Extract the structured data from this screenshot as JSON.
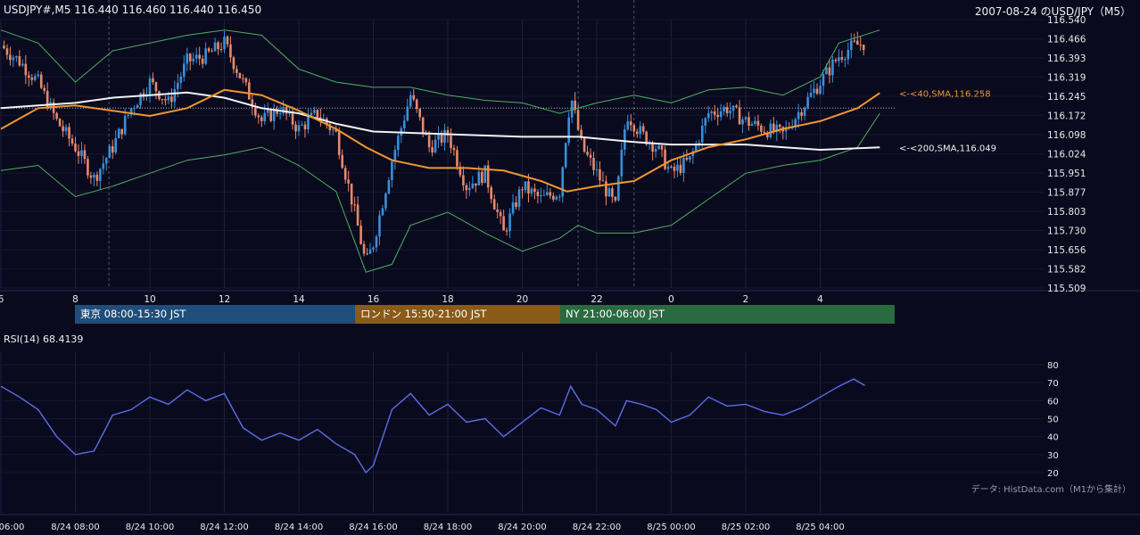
{
  "header": {
    "ohlc_label": "USDJPY#,M5 116.440 116.460 116.440 116.450",
    "title": "2007-08-24 のUSD/JPY（M5）"
  },
  "sessions": [
    {
      "label": "東京 08:00-15:30 JST",
      "color": "#1f4e7a"
    },
    {
      "label": "ロンドン 15:30-21:00 JST",
      "color": "#8a5a18"
    },
    {
      "label": "NY 21:00-06:00 JST",
      "color": "#2a6a40"
    }
  ],
  "rsi_label": "RSI(14) 68.4139",
  "credit": "データ: HistData.com（M1から集計）",
  "colors": {
    "up": "#3a8fd8",
    "down": "#e8896a",
    "sma40": "#f0962e",
    "sma200": "#f2f2f2",
    "band": "#4fae5e",
    "rsi": "#5a6ee8"
  },
  "chart_data": [
    {
      "type": "candlestick",
      "title": "USDJPY#,M5",
      "y_ticks": [
        "116.540",
        "116.466",
        "116.393",
        "116.319",
        "116.245",
        "116.172",
        "116.098",
        "116.024",
        "115.951",
        "115.877",
        "115.803",
        "115.730",
        "115.656",
        "115.582",
        "115.509"
      ],
      "ylim": [
        115.509,
        116.54
      ],
      "x_ticks": [
        "6",
        "8",
        "10",
        "12",
        "14",
        "16",
        "18",
        "20",
        "22",
        "0",
        "2",
        "4"
      ],
      "close_path": [
        [
          6.0,
          116.44
        ],
        [
          6.5,
          116.38
        ],
        [
          7.0,
          116.3
        ],
        [
          7.5,
          116.15
        ],
        [
          8.0,
          116.05
        ],
        [
          8.5,
          115.93
        ],
        [
          9.0,
          116.05
        ],
        [
          9.5,
          116.2
        ],
        [
          10.0,
          116.3
        ],
        [
          10.5,
          116.22
        ],
        [
          11.0,
          116.38
        ],
        [
          11.5,
          116.4
        ],
        [
          12.0,
          116.45
        ],
        [
          12.5,
          116.3
        ],
        [
          13.0,
          116.15
        ],
        [
          13.5,
          116.2
        ],
        [
          14.0,
          116.12
        ],
        [
          14.5,
          116.18
        ],
        [
          15.0,
          116.1
        ],
        [
          15.5,
          115.8
        ],
        [
          15.8,
          115.6
        ],
        [
          16.0,
          115.68
        ],
        [
          16.5,
          116.0
        ],
        [
          17.0,
          116.25
        ],
        [
          17.5,
          116.05
        ],
        [
          18.0,
          116.1
        ],
        [
          18.5,
          115.9
        ],
        [
          19.0,
          115.95
        ],
        [
          19.5,
          115.72
        ],
        [
          20.0,
          115.9
        ],
        [
          20.5,
          115.85
        ],
        [
          21.0,
          115.88
        ],
        [
          21.3,
          116.25
        ],
        [
          21.6,
          116.05
        ],
        [
          22.0,
          115.95
        ],
        [
          22.5,
          115.82
        ],
        [
          22.8,
          116.18
        ],
        [
          23.2,
          116.1
        ],
        [
          23.6,
          116.05
        ],
        [
          24.0,
          115.95
        ],
        [
          24.5,
          116.0
        ],
        [
          25.0,
          116.18
        ],
        [
          25.5,
          116.2
        ],
        [
          26.0,
          116.15
        ],
        [
          26.5,
          116.12
        ],
        [
          27.0,
          116.1
        ],
        [
          27.5,
          116.2
        ],
        [
          28.0,
          116.3
        ],
        [
          28.5,
          116.4
        ],
        [
          28.9,
          116.44
        ],
        [
          29.2,
          116.45
        ]
      ],
      "series": [
        {
          "name": "<-<40,SMA,116.258",
          "values": [
            [
              6.0,
              116.12
            ],
            [
              7.0,
              116.2
            ],
            [
              8.0,
              116.21
            ],
            [
              9.0,
              116.19
            ],
            [
              10.0,
              116.17
            ],
            [
              11.0,
              116.2
            ],
            [
              12.0,
              116.27
            ],
            [
              13.0,
              116.25
            ],
            [
              14.0,
              116.19
            ],
            [
              15.0,
              116.12
            ],
            [
              15.8,
              116.05
            ],
            [
              16.5,
              116.0
            ],
            [
              17.5,
              115.97
            ],
            [
              18.5,
              115.97
            ],
            [
              19.5,
              115.96
            ],
            [
              20.5,
              115.92
            ],
            [
              21.2,
              115.88
            ],
            [
              22.0,
              115.9
            ],
            [
              23.0,
              115.92
            ],
            [
              24.0,
              116.0
            ],
            [
              25.0,
              116.05
            ],
            [
              26.0,
              116.08
            ],
            [
              27.0,
              116.12
            ],
            [
              28.0,
              116.15
            ],
            [
              29.0,
              116.2
            ],
            [
              29.6,
              116.258
            ]
          ]
        },
        {
          "name": "<-<200,SMA,116.049",
          "values": [
            [
              6.0,
              116.2
            ],
            [
              7.0,
              116.21
            ],
            [
              8.0,
              116.22
            ],
            [
              9.0,
              116.24
            ],
            [
              10.0,
              116.25
            ],
            [
              11.0,
              116.26
            ],
            [
              12.0,
              116.24
            ],
            [
              13.0,
              116.2
            ],
            [
              14.0,
              116.18
            ],
            [
              15.0,
              116.14
            ],
            [
              16.0,
              116.11
            ],
            [
              18.0,
              116.1
            ],
            [
              20.0,
              116.09
            ],
            [
              21.5,
              116.09
            ],
            [
              23.0,
              116.07
            ],
            [
              24.0,
              116.06
            ],
            [
              25.0,
              116.06
            ],
            [
              26.0,
              116.06
            ],
            [
              27.0,
              116.05
            ],
            [
              28.0,
              116.04
            ],
            [
              29.6,
              116.049
            ]
          ]
        },
        {
          "name": "band_upper",
          "values": [
            [
              6.0,
              116.5
            ],
            [
              7.0,
              116.45
            ],
            [
              8.0,
              116.3
            ],
            [
              9.0,
              116.42
            ],
            [
              10.0,
              116.45
            ],
            [
              11.0,
              116.48
            ],
            [
              12.0,
              116.5
            ],
            [
              13.0,
              116.48
            ],
            [
              14.0,
              116.35
            ],
            [
              15.0,
              116.3
            ],
            [
              16.0,
              116.28
            ],
            [
              17.0,
              116.28
            ],
            [
              18.0,
              116.25
            ],
            [
              19.0,
              116.23
            ],
            [
              20.0,
              116.22
            ],
            [
              21.0,
              116.18
            ],
            [
              22.0,
              116.22
            ],
            [
              23.0,
              116.25
            ],
            [
              24.0,
              116.22
            ],
            [
              25.0,
              116.27
            ],
            [
              26.0,
              116.28
            ],
            [
              27.0,
              116.25
            ],
            [
              28.0,
              116.32
            ],
            [
              28.5,
              116.45
            ],
            [
              29.6,
              116.5
            ]
          ]
        },
        {
          "name": "band_lower",
          "values": [
            [
              6.0,
              115.96
            ],
            [
              7.0,
              115.98
            ],
            [
              8.0,
              115.86
            ],
            [
              9.0,
              115.9
            ],
            [
              10.0,
              115.95
            ],
            [
              11.0,
              116.0
            ],
            [
              12.0,
              116.02
            ],
            [
              13.0,
              116.05
            ],
            [
              14.0,
              115.98
            ],
            [
              15.0,
              115.88
            ],
            [
              15.8,
              115.57
            ],
            [
              16.5,
              115.6
            ],
            [
              17.0,
              115.75
            ],
            [
              18.0,
              115.8
            ],
            [
              19.0,
              115.72
            ],
            [
              20.0,
              115.65
            ],
            [
              21.0,
              115.7
            ],
            [
              21.5,
              115.75
            ],
            [
              22.0,
              115.72
            ],
            [
              23.0,
              115.72
            ],
            [
              24.0,
              115.75
            ],
            [
              25.0,
              115.85
            ],
            [
              26.0,
              115.95
            ],
            [
              27.0,
              115.98
            ],
            [
              28.0,
              116.0
            ],
            [
              29.0,
              116.05
            ],
            [
              29.6,
              116.18
            ]
          ]
        }
      ]
    },
    {
      "type": "line",
      "title": "RSI(14) 68.4139",
      "y_ticks": [
        "80",
        "70",
        "60",
        "50",
        "40",
        "30",
        "20"
      ],
      "ylim": [
        20,
        80
      ],
      "x_ticks": [
        "06:00",
        "8/24 08:00",
        "8/24 10:00",
        "8/24 12:00",
        "8/24 14:00",
        "8/24 16:00",
        "8/24 18:00",
        "8/24 20:00",
        "8/24 22:00",
        "8/25 00:00",
        "8/25 02:00",
        "8/25 04:00"
      ],
      "values": [
        [
          6.0,
          68
        ],
        [
          6.5,
          62
        ],
        [
          7.0,
          55
        ],
        [
          7.5,
          40
        ],
        [
          8.0,
          30
        ],
        [
          8.5,
          32
        ],
        [
          9.0,
          52
        ],
        [
          9.5,
          55
        ],
        [
          10.0,
          62
        ],
        [
          10.5,
          58
        ],
        [
          11.0,
          66
        ],
        [
          11.5,
          60
        ],
        [
          12.0,
          64
        ],
        [
          12.5,
          45
        ],
        [
          13.0,
          38
        ],
        [
          13.5,
          42
        ],
        [
          14.0,
          38
        ],
        [
          14.5,
          44
        ],
        [
          15.0,
          36
        ],
        [
          15.5,
          30
        ],
        [
          15.8,
          20
        ],
        [
          16.0,
          24
        ],
        [
          16.5,
          55
        ],
        [
          17.0,
          64
        ],
        [
          17.5,
          52
        ],
        [
          18.0,
          58
        ],
        [
          18.5,
          48
        ],
        [
          19.0,
          50
        ],
        [
          19.5,
          40
        ],
        [
          20.0,
          48
        ],
        [
          20.5,
          56
        ],
        [
          21.0,
          52
        ],
        [
          21.3,
          68
        ],
        [
          21.6,
          58
        ],
        [
          22.0,
          55
        ],
        [
          22.5,
          46
        ],
        [
          22.8,
          60
        ],
        [
          23.2,
          58
        ],
        [
          23.6,
          55
        ],
        [
          24.0,
          48
        ],
        [
          24.5,
          52
        ],
        [
          25.0,
          62
        ],
        [
          25.5,
          57
        ],
        [
          26.0,
          58
        ],
        [
          26.5,
          54
        ],
        [
          27.0,
          52
        ],
        [
          27.5,
          56
        ],
        [
          28.0,
          62
        ],
        [
          28.5,
          68
        ],
        [
          28.9,
          72
        ],
        [
          29.2,
          68.41
        ]
      ]
    }
  ]
}
